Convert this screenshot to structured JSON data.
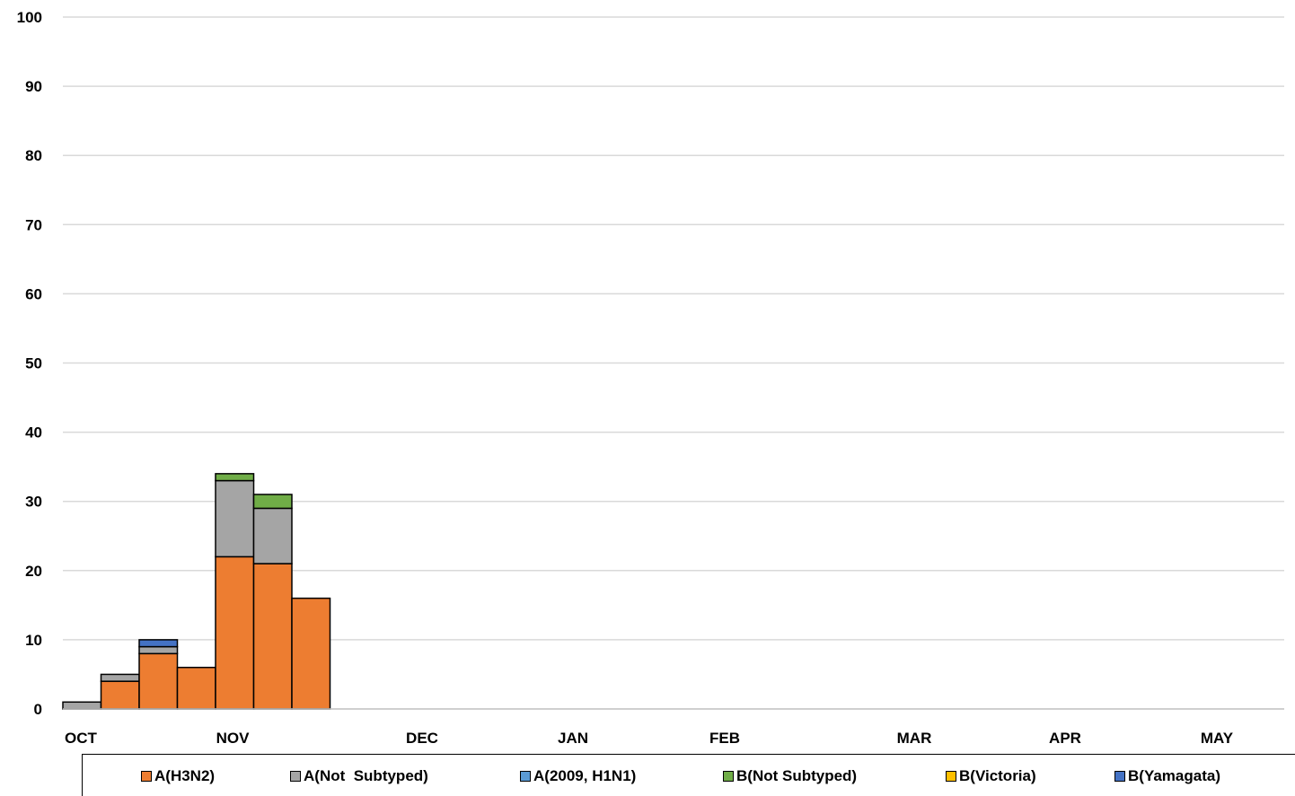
{
  "chart_data": {
    "type": "bar",
    "stacked": true,
    "ylim": [
      0,
      100
    ],
    "yticks": [
      0,
      10,
      20,
      30,
      40,
      50,
      60,
      70,
      80,
      90,
      100
    ],
    "grid": true,
    "legend_position": "bottom",
    "month_labels": [
      "OCT",
      "NOV",
      "DEC",
      "JAN",
      "FEB",
      "MAR",
      "APR",
      "MAY"
    ],
    "weeks": 32,
    "series": [
      {
        "name": "A(H3N2)",
        "color": "#ED7D31",
        "values": [
          0,
          4,
          8,
          6,
          22,
          21,
          16
        ]
      },
      {
        "name": "A(Not  Subtyped)",
        "color": "#A5A5A5",
        "values": [
          1,
          1,
          1,
          0,
          11,
          8,
          0
        ]
      },
      {
        "name": "A(2009, H1N1)",
        "color": "#5B9BD5",
        "values": [
          0,
          0,
          0,
          0,
          0,
          0,
          0
        ]
      },
      {
        "name": "B(Not Subtyped)",
        "color": "#70AD47",
        "values": [
          0,
          0,
          0,
          0,
          1,
          2,
          0
        ]
      },
      {
        "name": "B(Victoria)",
        "color": "#FFC000",
        "values": [
          0,
          0,
          0,
          0,
          0,
          0,
          0
        ]
      },
      {
        "name": "B(Yamagata)",
        "color": "#4472C4",
        "values": [
          0,
          0,
          1,
          0,
          0,
          0,
          0
        ]
      }
    ]
  }
}
